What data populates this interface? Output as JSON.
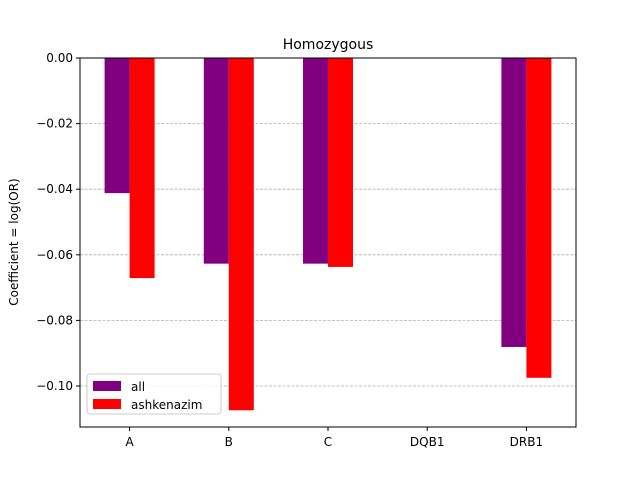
{
  "chart_data": {
    "type": "bar",
    "title": "Homozygous",
    "xlabel": "",
    "ylabel": "Coefficient = log(OR)",
    "categories": [
      "A",
      "B",
      "C",
      "DQB1",
      "DRB1"
    ],
    "series": [
      {
        "name": "all",
        "color": "#800080",
        "values": [
          -0.0412,
          -0.0627,
          -0.0627,
          0,
          -0.0881
        ]
      },
      {
        "name": "ashkenazim",
        "color": "#ff0000",
        "values": [
          -0.0671,
          -0.1074,
          -0.0637,
          0,
          -0.0975
        ]
      }
    ],
    "ylim": [
      -0.1125,
      0.0
    ],
    "yticks": [
      0.0,
      -0.02,
      -0.04,
      -0.06,
      -0.08,
      -0.1
    ],
    "ytick_labels": [
      "0.00",
      "−0.02",
      "−0.04",
      "−0.06",
      "−0.08",
      "−0.10"
    ],
    "grid": "horizontal dashed",
    "grid_color": "#b0b0b0",
    "legend_position": "lower-left"
  }
}
